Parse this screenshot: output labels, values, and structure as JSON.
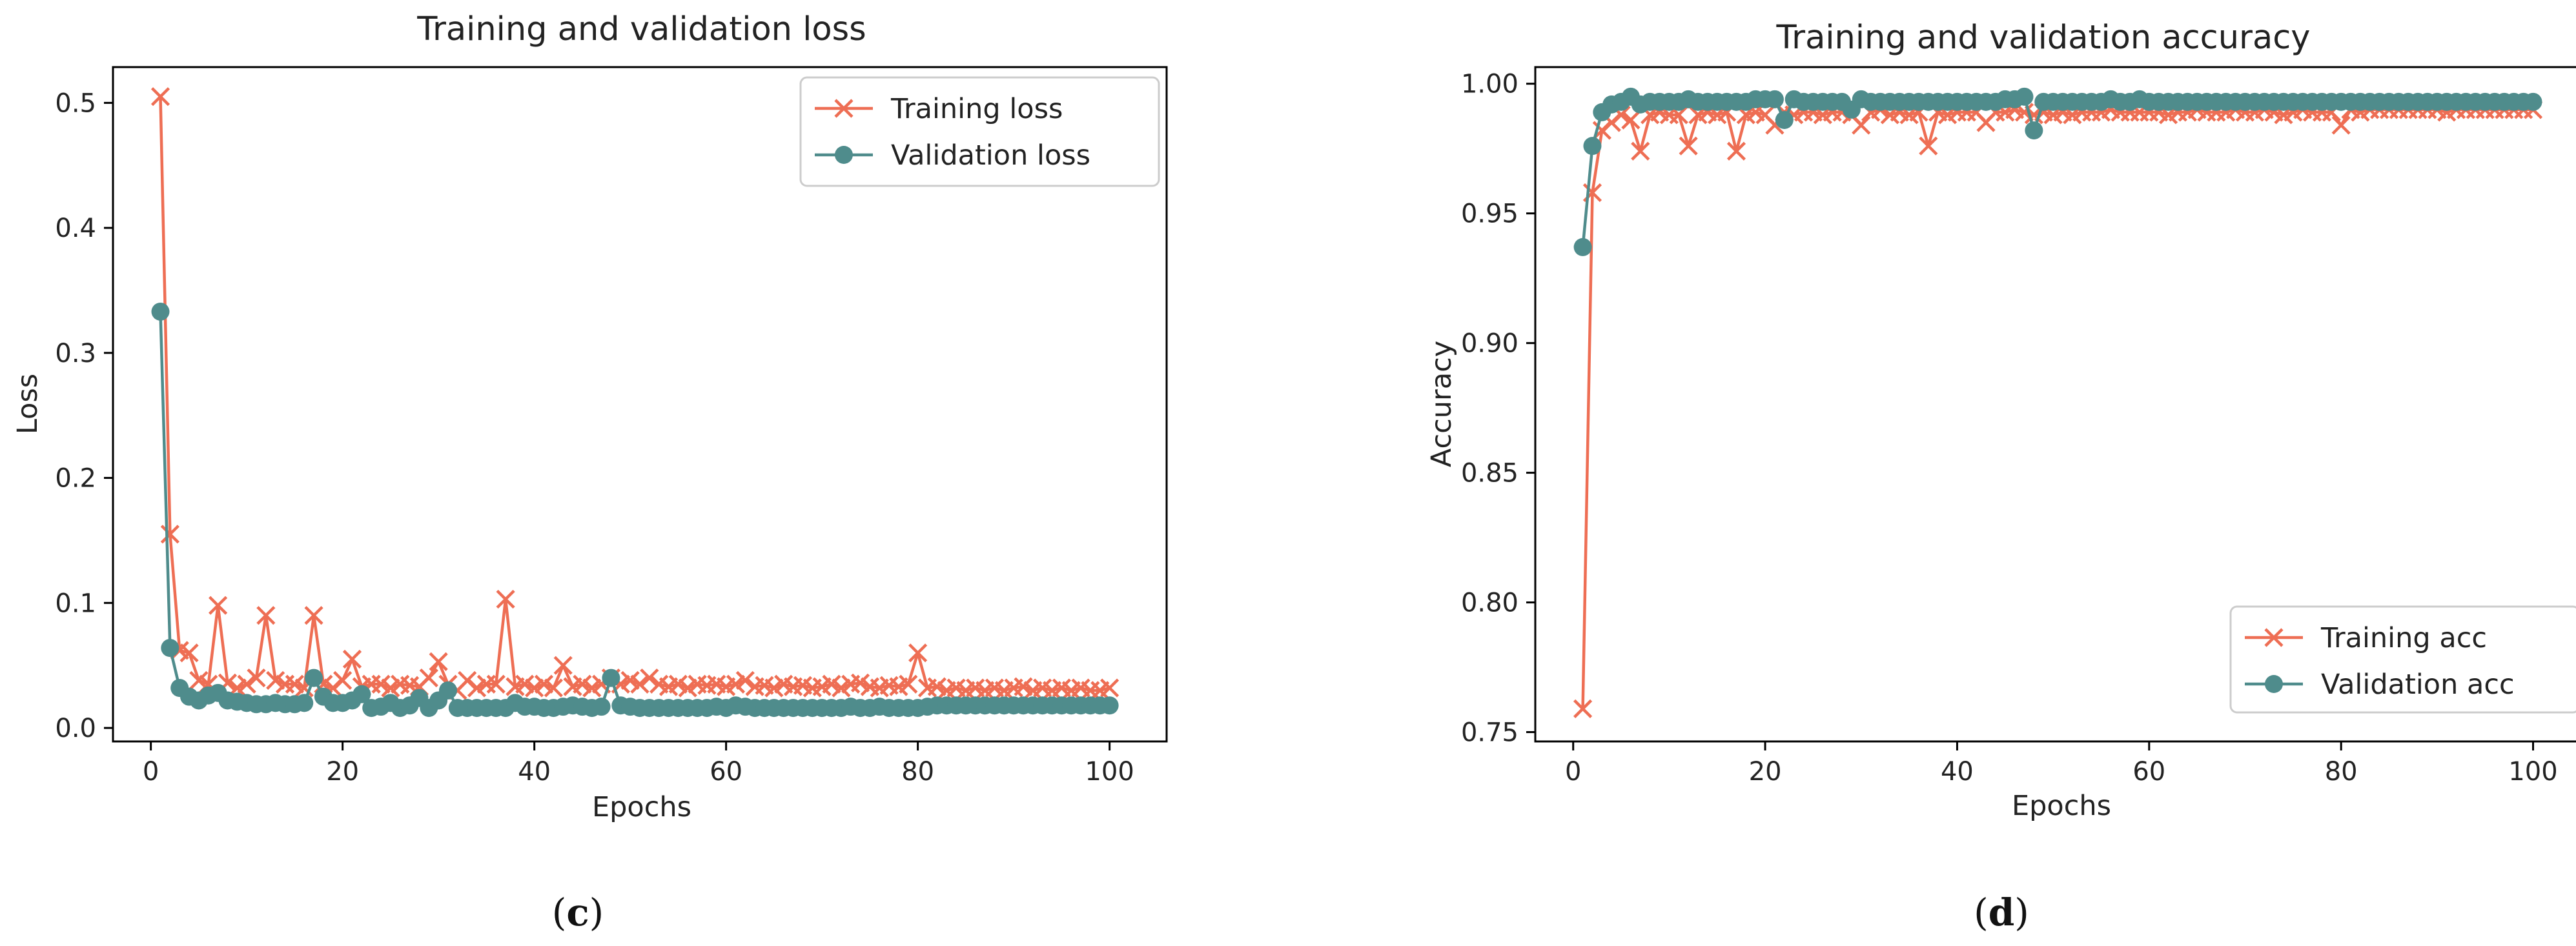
{
  "colors": {
    "training": "#EE6E54",
    "validation": "#4F8C8C"
  },
  "chart_data": [
    {
      "type": "line",
      "panel": "c",
      "caption": {
        "open": "(",
        "letter": "c",
        "close": ")"
      },
      "title": "Training and validation loss",
      "xlabel": "Epochs",
      "ylabel": "Loss",
      "xlim": [
        -3.95,
        105.95
      ],
      "ylim": [
        -0.0108,
        0.5286
      ],
      "xticks": [
        0,
        20,
        40,
        60,
        80,
        100
      ],
      "xtick_labels": [
        "0",
        "20",
        "40",
        "60",
        "80",
        "100"
      ],
      "yticks": [
        0.0,
        0.1,
        0.2,
        0.3,
        0.4,
        0.5
      ],
      "ytick_labels": [
        "0.0",
        "0.1",
        "0.2",
        "0.3",
        "0.4",
        "0.5"
      ],
      "legend_position": "top-right",
      "series": [
        {
          "name": "Training loss",
          "marker": "x",
          "x": [
            1,
            2,
            3,
            4,
            5,
            6,
            7,
            8,
            9,
            10,
            11,
            12,
            13,
            14,
            15,
            16,
            17,
            18,
            19,
            20,
            21,
            22,
            23,
            24,
            25,
            26,
            27,
            28,
            29,
            30,
            31,
            32,
            33,
            34,
            35,
            36,
            37,
            38,
            39,
            40,
            41,
            42,
            43,
            44,
            45,
            46,
            47,
            48,
            49,
            50,
            51,
            52,
            53,
            54,
            55,
            56,
            57,
            58,
            59,
            60,
            61,
            62,
            63,
            64,
            65,
            66,
            67,
            68,
            69,
            70,
            71,
            72,
            73,
            74,
            75,
            76,
            77,
            78,
            79,
            80,
            81,
            82,
            83,
            84,
            85,
            86,
            87,
            88,
            89,
            90,
            91,
            92,
            93,
            94,
            95,
            96,
            97,
            98,
            99,
            100
          ],
          "y": [
            0.505,
            0.155,
            0.062,
            0.06,
            0.038,
            0.035,
            0.098,
            0.036,
            0.032,
            0.035,
            0.04,
            0.09,
            0.038,
            0.035,
            0.035,
            0.032,
            0.09,
            0.035,
            0.032,
            0.038,
            0.055,
            0.033,
            0.035,
            0.035,
            0.032,
            0.035,
            0.034,
            0.033,
            0.04,
            0.053,
            0.035,
            0.03,
            0.038,
            0.032,
            0.035,
            0.035,
            0.103,
            0.033,
            0.035,
            0.032,
            0.035,
            0.032,
            0.05,
            0.033,
            0.035,
            0.032,
            0.035,
            0.04,
            0.035,
            0.038,
            0.035,
            0.04,
            0.035,
            0.033,
            0.035,
            0.032,
            0.035,
            0.034,
            0.035,
            0.033,
            0.035,
            0.038,
            0.033,
            0.034,
            0.032,
            0.035,
            0.033,
            0.034,
            0.032,
            0.033,
            0.035,
            0.032,
            0.035,
            0.036,
            0.033,
            0.032,
            0.034,
            0.033,
            0.035,
            0.06,
            0.032,
            0.033,
            0.03,
            0.032,
            0.03,
            0.032,
            0.03,
            0.032,
            0.03,
            0.032,
            0.033,
            0.03,
            0.032,
            0.03,
            0.032,
            0.03,
            0.032,
            0.03,
            0.03,
            0.032
          ]
        },
        {
          "name": "Validation loss",
          "marker": "o",
          "x": [
            1,
            2,
            3,
            4,
            5,
            6,
            7,
            8,
            9,
            10,
            11,
            12,
            13,
            14,
            15,
            16,
            17,
            18,
            19,
            20,
            21,
            22,
            23,
            24,
            25,
            26,
            27,
            28,
            29,
            30,
            31,
            32,
            33,
            34,
            35,
            36,
            37,
            38,
            39,
            40,
            41,
            42,
            43,
            44,
            45,
            46,
            47,
            48,
            49,
            50,
            51,
            52,
            53,
            54,
            55,
            56,
            57,
            58,
            59,
            60,
            61,
            62,
            63,
            64,
            65,
            66,
            67,
            68,
            69,
            70,
            71,
            72,
            73,
            74,
            75,
            76,
            77,
            78,
            79,
            80,
            81,
            82,
            83,
            84,
            85,
            86,
            87,
            88,
            89,
            90,
            91,
            92,
            93,
            94,
            95,
            96,
            97,
            98,
            99,
            100
          ],
          "y": [
            0.333,
            0.064,
            0.032,
            0.025,
            0.022,
            0.026,
            0.028,
            0.022,
            0.021,
            0.02,
            0.019,
            0.019,
            0.02,
            0.019,
            0.019,
            0.02,
            0.04,
            0.025,
            0.02,
            0.02,
            0.022,
            0.027,
            0.016,
            0.017,
            0.02,
            0.016,
            0.018,
            0.024,
            0.016,
            0.022,
            0.03,
            0.016,
            0.016,
            0.016,
            0.016,
            0.016,
            0.016,
            0.02,
            0.017,
            0.017,
            0.016,
            0.016,
            0.017,
            0.018,
            0.017,
            0.016,
            0.017,
            0.04,
            0.018,
            0.017,
            0.016,
            0.016,
            0.016,
            0.016,
            0.016,
            0.016,
            0.016,
            0.016,
            0.017,
            0.016,
            0.018,
            0.017,
            0.016,
            0.016,
            0.016,
            0.016,
            0.016,
            0.016,
            0.016,
            0.016,
            0.016,
            0.016,
            0.017,
            0.016,
            0.016,
            0.017,
            0.016,
            0.016,
            0.016,
            0.016,
            0.017,
            0.018,
            0.018,
            0.018,
            0.018,
            0.018,
            0.018,
            0.018,
            0.018,
            0.018,
            0.018,
            0.018,
            0.018,
            0.018,
            0.018,
            0.018,
            0.018,
            0.018,
            0.018,
            0.018
          ]
        }
      ]
    },
    {
      "type": "line",
      "panel": "d",
      "caption": {
        "open": "(",
        "letter": "d",
        "close": ")"
      },
      "title": "Training and validation accuracy",
      "xlabel": "Epochs",
      "ylabel": "Accuracy",
      "xlim": [
        -3.95,
        105.95
      ],
      "ylim": [
        0.7464,
        1.0064
      ],
      "xticks": [
        0,
        20,
        40,
        60,
        80,
        100
      ],
      "xtick_labels": [
        "0",
        "20",
        "40",
        "60",
        "80",
        "100"
      ],
      "yticks": [
        0.75,
        0.8,
        0.85,
        0.9,
        0.95,
        1.0
      ],
      "ytick_labels": [
        "0.75",
        "0.80",
        "0.85",
        "0.90",
        "0.95",
        "1.00"
      ],
      "legend_position": "bottom-right",
      "series": [
        {
          "name": "Training acc",
          "marker": "x",
          "x": [
            1,
            2,
            3,
            4,
            5,
            6,
            7,
            8,
            9,
            10,
            11,
            12,
            13,
            14,
            15,
            16,
            17,
            18,
            19,
            20,
            21,
            22,
            23,
            24,
            25,
            26,
            27,
            28,
            29,
            30,
            31,
            32,
            33,
            34,
            35,
            36,
            37,
            38,
            39,
            40,
            41,
            42,
            43,
            44,
            45,
            46,
            47,
            48,
            49,
            50,
            51,
            52,
            53,
            54,
            55,
            56,
            57,
            58,
            59,
            60,
            61,
            62,
            63,
            64,
            65,
            66,
            67,
            68,
            69,
            70,
            71,
            72,
            73,
            74,
            75,
            76,
            77,
            78,
            79,
            80,
            81,
            82,
            83,
            84,
            85,
            86,
            87,
            88,
            89,
            90,
            91,
            92,
            93,
            94,
            95,
            96,
            97,
            98,
            99,
            100
          ],
          "y": [
            0.759,
            0.958,
            0.982,
            0.985,
            0.988,
            0.986,
            0.974,
            0.988,
            0.989,
            0.988,
            0.988,
            0.976,
            0.988,
            0.989,
            0.988,
            0.989,
            0.974,
            0.988,
            0.989,
            0.988,
            0.984,
            0.989,
            0.988,
            0.989,
            0.989,
            0.988,
            0.989,
            0.989,
            0.988,
            0.984,
            0.989,
            0.99,
            0.988,
            0.989,
            0.988,
            0.989,
            0.976,
            0.989,
            0.988,
            0.989,
            0.989,
            0.989,
            0.985,
            0.989,
            0.989,
            0.99,
            0.989,
            0.988,
            0.989,
            0.988,
            0.989,
            0.988,
            0.989,
            0.989,
            0.989,
            0.99,
            0.989,
            0.989,
            0.989,
            0.989,
            0.989,
            0.988,
            0.989,
            0.989,
            0.99,
            0.989,
            0.989,
            0.989,
            0.99,
            0.989,
            0.989,
            0.99,
            0.989,
            0.988,
            0.989,
            0.99,
            0.989,
            0.989,
            0.989,
            0.984,
            0.99,
            0.989,
            0.99,
            0.99,
            0.99,
            0.99,
            0.99,
            0.99,
            0.99,
            0.99,
            0.989,
            0.99,
            0.99,
            0.99,
            0.99,
            0.99,
            0.99,
            0.99,
            0.99,
            0.99
          ]
        },
        {
          "name": "Validation acc",
          "marker": "o",
          "x": [
            1,
            2,
            3,
            4,
            5,
            6,
            7,
            8,
            9,
            10,
            11,
            12,
            13,
            14,
            15,
            16,
            17,
            18,
            19,
            20,
            21,
            22,
            23,
            24,
            25,
            26,
            27,
            28,
            29,
            30,
            31,
            32,
            33,
            34,
            35,
            36,
            37,
            38,
            39,
            40,
            41,
            42,
            43,
            44,
            45,
            46,
            47,
            48,
            49,
            50,
            51,
            52,
            53,
            54,
            55,
            56,
            57,
            58,
            59,
            60,
            61,
            62,
            63,
            64,
            65,
            66,
            67,
            68,
            69,
            70,
            71,
            72,
            73,
            74,
            75,
            76,
            77,
            78,
            79,
            80,
            81,
            82,
            83,
            84,
            85,
            86,
            87,
            88,
            89,
            90,
            91,
            92,
            93,
            94,
            95,
            96,
            97,
            98,
            99,
            100
          ],
          "y": [
            0.937,
            0.976,
            0.989,
            0.992,
            0.993,
            0.995,
            0.992,
            0.993,
            0.993,
            0.993,
            0.993,
            0.994,
            0.993,
            0.993,
            0.993,
            0.993,
            0.993,
            0.993,
            0.994,
            0.994,
            0.994,
            0.986,
            0.994,
            0.993,
            0.993,
            0.993,
            0.993,
            0.993,
            0.99,
            0.994,
            0.993,
            0.993,
            0.993,
            0.993,
            0.993,
            0.993,
            0.993,
            0.993,
            0.993,
            0.993,
            0.993,
            0.993,
            0.993,
            0.993,
            0.994,
            0.994,
            0.995,
            0.982,
            0.993,
            0.993,
            0.993,
            0.993,
            0.993,
            0.993,
            0.993,
            0.994,
            0.993,
            0.993,
            0.994,
            0.993,
            0.993,
            0.993,
            0.993,
            0.993,
            0.993,
            0.993,
            0.993,
            0.993,
            0.993,
            0.993,
            0.993,
            0.993,
            0.993,
            0.993,
            0.993,
            0.993,
            0.993,
            0.993,
            0.993,
            0.993,
            0.993,
            0.993,
            0.993,
            0.993,
            0.993,
            0.993,
            0.993,
            0.993,
            0.993,
            0.993,
            0.993,
            0.993,
            0.993,
            0.993,
            0.993,
            0.993,
            0.993,
            0.993,
            0.993,
            0.993
          ]
        }
      ]
    }
  ]
}
